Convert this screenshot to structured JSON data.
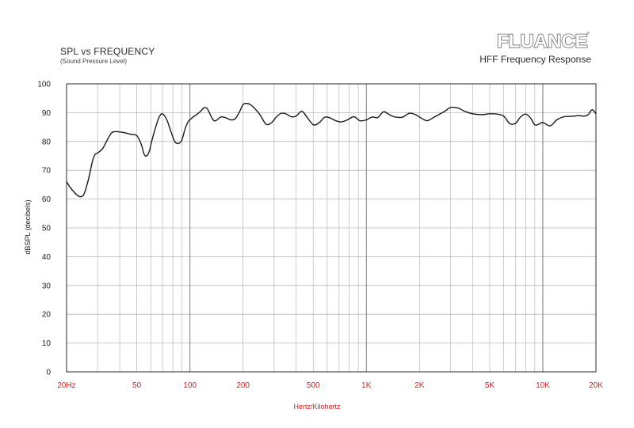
{
  "header": {
    "title": "SPL vs FREQUENCY",
    "subtitle": "(Sound Pressure Level)",
    "brand": "FLUANCE",
    "brand_mark": "®",
    "product": "HFF Frequency Response"
  },
  "colors": {
    "curve": "#1a1a1a",
    "grid": "#b8b8b8",
    "x_tick_labels": "#d51c1c",
    "axis_text": "#222222"
  },
  "chart_data": {
    "type": "line",
    "title": "SPL vs FREQUENCY",
    "subtitle": "(Sound Pressure Level)",
    "xlabel": "Hertz/Kilohertz",
    "ylabel": "dBSPL (decibels)",
    "x_scale": "log",
    "xlim": [
      20,
      20000
    ],
    "ylim": [
      0,
      100
    ],
    "grid": true,
    "legend": "none",
    "y_ticks": [
      0,
      10,
      20,
      30,
      40,
      50,
      60,
      70,
      80,
      90,
      100
    ],
    "x_ticks": [
      {
        "value": 20,
        "label": "20Hz"
      },
      {
        "value": 50,
        "label": "50"
      },
      {
        "value": 100,
        "label": "100"
      },
      {
        "value": 200,
        "label": "200"
      },
      {
        "value": 500,
        "label": "500"
      },
      {
        "value": 1000,
        "label": "1K"
      },
      {
        "value": 2000,
        "label": "2K"
      },
      {
        "value": 5000,
        "label": "5K"
      },
      {
        "value": 10000,
        "label": "10K"
      },
      {
        "value": 20000,
        "label": "20K"
      }
    ],
    "series": [
      {
        "x": [
          20,
          21,
          22,
          23,
          24,
          25,
          26,
          27,
          28,
          29,
          30,
          32,
          34,
          36,
          38,
          40,
          43,
          46,
          50,
          53,
          55,
          57,
          59,
          61,
          64,
          67,
          70,
          74,
          78,
          82,
          86,
          90,
          94,
          98,
          102,
          106,
          110,
          115,
          120,
          125,
          130,
          135,
          140,
          150,
          160,
          170,
          180,
          190,
          200,
          210,
          220,
          235,
          250,
          270,
          290,
          310,
          330,
          350,
          375,
          400,
          430,
          460,
          500,
          540,
          580,
          620,
          670,
          720,
          780,
          850,
          920,
          1000,
          1080,
          1160,
          1250,
          1350,
          1450,
          1600,
          1750,
          1900,
          2000,
          2200,
          2400,
          2600,
          2800,
          3000,
          3300,
          3600,
          4000,
          4500,
          5000,
          5500,
          6000,
          6500,
          7000,
          7500,
          8000,
          8500,
          9000,
          9500,
          10000,
          11000,
          12000,
          13000,
          14000,
          15000,
          16000,
          17000,
          18000,
          19000,
          20000
        ],
        "y": [
          66,
          64,
          62.5,
          61.3,
          60.8,
          61.5,
          64.5,
          68.5,
          73,
          75.5,
          76,
          77.5,
          80.5,
          83,
          83.4,
          83.3,
          83,
          82.5,
          82,
          79,
          75.6,
          75,
          76.8,
          80.5,
          85,
          88.5,
          89.6,
          87.5,
          83.5,
          80,
          79.3,
          80.5,
          84.5,
          87,
          88,
          88.8,
          89.5,
          90.5,
          91.7,
          91.5,
          89.5,
          87.6,
          87.2,
          88.5,
          88.2,
          87.5,
          87.8,
          90,
          92.8,
          93.2,
          92.8,
          91.2,
          89.2,
          86,
          86.5,
          88.6,
          89.8,
          89.6,
          88.6,
          88.8,
          90.5,
          88.5,
          85.8,
          86.5,
          88.4,
          88.2,
          87.2,
          86.8,
          87.5,
          88.6,
          87.2,
          87.5,
          88.5,
          88.3,
          90.3,
          89.3,
          88.5,
          88.4,
          89.8,
          89.3,
          88.5,
          87.2,
          88.3,
          89.5,
          90.6,
          91.8,
          91.6,
          90.5,
          89.6,
          89.3,
          89.6,
          89.5,
          88.8,
          86.2,
          86.3,
          88.6,
          89.5,
          88.2,
          85.8,
          86,
          86.6,
          85.4,
          87.5,
          88.5,
          88.7,
          88.8,
          89,
          88.8,
          89.2,
          91,
          89.6
        ]
      }
    ]
  }
}
